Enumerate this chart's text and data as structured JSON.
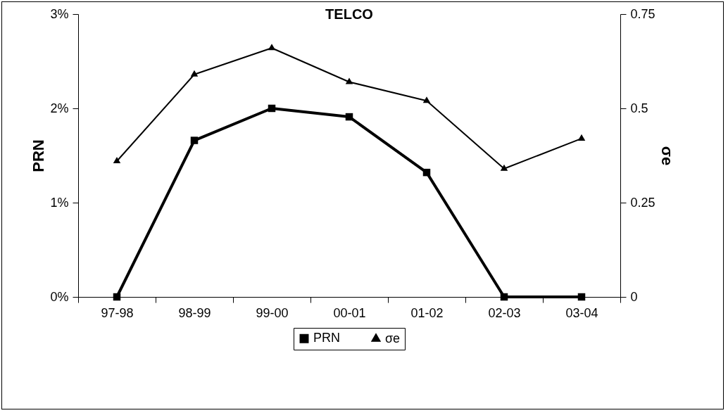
{
  "chart_data": {
    "type": "line",
    "title": "TELCO",
    "ylabel": "PRN",
    "y2label": "σe",
    "categories": [
      "97-98",
      "98-99",
      "99-00",
      "00-01",
      "01-02",
      "02-03",
      "03-04"
    ],
    "series": [
      {
        "name": "PRN",
        "color": "#000000",
        "marker": "square",
        "values": [
          0,
          1.66,
          2.0,
          1.91,
          1.32,
          0,
          0
        ]
      },
      {
        "name": "σe",
        "color": "#000000",
        "marker": "triangle",
        "axis": "y2",
        "values": [
          0.36,
          0.59,
          0.66,
          0.57,
          0.52,
          0.34,
          0.42
        ]
      }
    ],
    "ylim": [
      0,
      3
    ],
    "yticks": [
      {
        "value": 0,
        "label": "0%"
      },
      {
        "value": 1,
        "label": "1%"
      },
      {
        "value": 2,
        "label": "2%"
      },
      {
        "value": 3,
        "label": "3%"
      }
    ],
    "y2lim": [
      0,
      0.75
    ],
    "y2ticks": [
      0,
      0.25,
      0.5,
      0.75
    ],
    "grid": false,
    "legend": "bottom"
  }
}
